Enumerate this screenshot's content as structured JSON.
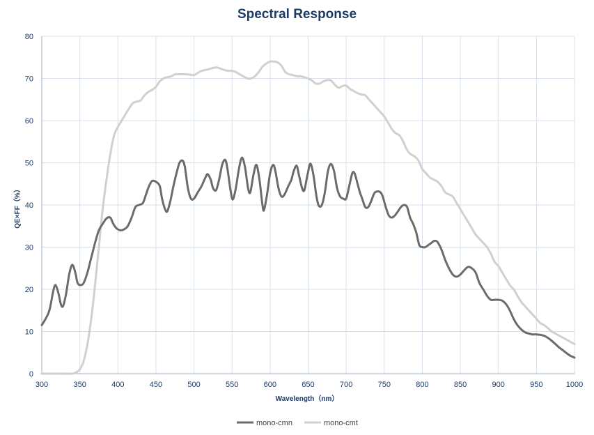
{
  "chart_data": {
    "type": "line",
    "title": "Spectral Response",
    "xlabel": "Wavelength（nm）",
    "ylabel": "QE×FF（%）",
    "xlim": [
      300,
      1000
    ],
    "ylim": [
      0,
      80
    ],
    "x_ticks": [
      "300",
      "350",
      "400",
      "450",
      "500",
      "550",
      "600",
      "650",
      "700",
      "750",
      "800",
      "850",
      "900",
      "950",
      "1000"
    ],
    "y_ticks": [
      "0",
      "10",
      "20",
      "30",
      "40",
      "50",
      "60",
      "70",
      "80"
    ],
    "grid": true,
    "legend_position": "bottom",
    "series": [
      {
        "name": "mono-cmn",
        "color": "#6b6b6b",
        "points": [
          [
            300,
            11.5
          ],
          [
            305,
            13
          ],
          [
            310,
            15
          ],
          [
            315,
            19.5
          ],
          [
            318,
            21
          ],
          [
            322,
            19
          ],
          [
            325,
            16.5
          ],
          [
            328,
            16
          ],
          [
            332,
            19
          ],
          [
            336,
            23.5
          ],
          [
            340,
            25.8
          ],
          [
            344,
            24
          ],
          [
            347,
            21.5
          ],
          [
            351,
            21
          ],
          [
            355,
            21.5
          ],
          [
            360,
            24
          ],
          [
            365,
            27.5
          ],
          [
            370,
            31
          ],
          [
            375,
            34
          ],
          [
            380,
            35.5
          ],
          [
            385,
            36.8
          ],
          [
            390,
            37
          ],
          [
            394,
            35.5
          ],
          [
            398,
            34.5
          ],
          [
            403,
            34
          ],
          [
            408,
            34.2
          ],
          [
            413,
            35
          ],
          [
            418,
            37
          ],
          [
            423,
            39.5
          ],
          [
            428,
            40
          ],
          [
            433,
            40.5
          ],
          [
            437,
            42.5
          ],
          [
            441,
            44.5
          ],
          [
            445,
            45.7
          ],
          [
            450,
            45.5
          ],
          [
            455,
            44.5
          ],
          [
            458,
            41.5
          ],
          [
            462,
            39
          ],
          [
            465,
            38.5
          ],
          [
            469,
            41
          ],
          [
            473,
            44.5
          ],
          [
            477,
            47.5
          ],
          [
            481,
            50
          ],
          [
            485,
            50.5
          ],
          [
            488,
            49
          ],
          [
            492,
            44
          ],
          [
            496,
            41.5
          ],
          [
            500,
            41.5
          ],
          [
            505,
            43
          ],
          [
            510,
            44.5
          ],
          [
            515,
            46.5
          ],
          [
            518,
            47.3
          ],
          [
            522,
            46
          ],
          [
            525,
            44
          ],
          [
            529,
            43.5
          ],
          [
            533,
            46
          ],
          [
            537,
            49.5
          ],
          [
            541,
            50.7
          ],
          [
            544,
            48.5
          ],
          [
            548,
            43.5
          ],
          [
            551,
            41.3
          ],
          [
            555,
            44
          ],
          [
            559,
            48.5
          ],
          [
            563,
            51.2
          ],
          [
            567,
            49
          ],
          [
            571,
            44
          ],
          [
            574,
            43
          ],
          [
            578,
            47
          ],
          [
            582,
            49.5
          ],
          [
            586,
            46
          ],
          [
            590,
            40
          ],
          [
            592,
            38.8
          ],
          [
            596,
            42.5
          ],
          [
            600,
            47.5
          ],
          [
            604,
            49.5
          ],
          [
            607,
            48
          ],
          [
            611,
            44
          ],
          [
            615,
            42
          ],
          [
            619,
            42.5
          ],
          [
            624,
            44.5
          ],
          [
            628,
            46
          ],
          [
            631,
            48
          ],
          [
            635,
            49.3
          ],
          [
            638,
            47
          ],
          [
            642,
            44
          ],
          [
            645,
            43.5
          ],
          [
            649,
            47
          ],
          [
            653,
            49.8
          ],
          [
            657,
            47
          ],
          [
            661,
            42
          ],
          [
            664,
            39.8
          ],
          [
            668,
            40
          ],
          [
            672,
            43
          ],
          [
            676,
            48
          ],
          [
            680,
            49.7
          ],
          [
            684,
            48
          ],
          [
            688,
            44
          ],
          [
            692,
            42
          ],
          [
            696,
            41.5
          ],
          [
            700,
            41.5
          ],
          [
            704,
            44.5
          ],
          [
            708,
            47.5
          ],
          [
            711,
            47.5
          ],
          [
            715,
            45
          ],
          [
            718,
            43
          ],
          [
            721,
            41.5
          ],
          [
            725,
            39.5
          ],
          [
            729,
            39.5
          ],
          [
            733,
            41
          ],
          [
            737,
            42.8
          ],
          [
            741,
            43.2
          ],
          [
            745,
            43
          ],
          [
            748,
            42
          ],
          [
            752,
            39.5
          ],
          [
            756,
            37.5
          ],
          [
            760,
            37
          ],
          [
            764,
            37.5
          ],
          [
            768,
            38.5
          ],
          [
            772,
            39.5
          ],
          [
            776,
            40
          ],
          [
            780,
            39.5
          ],
          [
            784,
            37
          ],
          [
            788,
            35.5
          ],
          [
            792,
            33.5
          ],
          [
            796,
            30.5
          ],
          [
            800,
            30
          ],
          [
            804,
            30
          ],
          [
            808,
            30.5
          ],
          [
            812,
            31
          ],
          [
            816,
            31.5
          ],
          [
            820,
            31.2
          ],
          [
            825,
            29.5
          ],
          [
            830,
            27
          ],
          [
            835,
            25
          ],
          [
            840,
            23.5
          ],
          [
            845,
            23
          ],
          [
            850,
            23.5
          ],
          [
            855,
            24.5
          ],
          [
            860,
            25.3
          ],
          [
            865,
            25
          ],
          [
            870,
            24
          ],
          [
            875,
            21.5
          ],
          [
            880,
            20
          ],
          [
            885,
            18.5
          ],
          [
            890,
            17.5
          ],
          [
            895,
            17.5
          ],
          [
            900,
            17.5
          ],
          [
            905,
            17.3
          ],
          [
            910,
            16.5
          ],
          [
            915,
            15
          ],
          [
            920,
            13
          ],
          [
            925,
            11.5
          ],
          [
            930,
            10.5
          ],
          [
            935,
            9.8
          ],
          [
            940,
            9.5
          ],
          [
            945,
            9.3
          ],
          [
            950,
            9.3
          ],
          [
            955,
            9.2
          ],
          [
            960,
            9
          ],
          [
            965,
            8.5
          ],
          [
            970,
            7.8
          ],
          [
            975,
            7
          ],
          [
            980,
            6.2
          ],
          [
            985,
            5.5
          ],
          [
            990,
            4.8
          ],
          [
            995,
            4.2
          ],
          [
            1000,
            3.8
          ]
        ]
      },
      {
        "name": "mono-cmt",
        "color": "#d0d0d0",
        "points": [
          [
            300,
            0
          ],
          [
            310,
            0
          ],
          [
            320,
            0
          ],
          [
            330,
            0
          ],
          [
            340,
            0
          ],
          [
            345,
            0.3
          ],
          [
            350,
            1
          ],
          [
            355,
            3
          ],
          [
            360,
            7
          ],
          [
            365,
            13
          ],
          [
            370,
            21
          ],
          [
            375,
            30
          ],
          [
            380,
            39
          ],
          [
            385,
            46
          ],
          [
            390,
            52
          ],
          [
            395,
            56.5
          ],
          [
            400,
            58.5
          ],
          [
            405,
            60
          ],
          [
            410,
            61.5
          ],
          [
            415,
            63
          ],
          [
            420,
            64.2
          ],
          [
            425,
            64.5
          ],
          [
            430,
            64.8
          ],
          [
            435,
            66
          ],
          [
            440,
            66.8
          ],
          [
            445,
            67.3
          ],
          [
            450,
            68
          ],
          [
            455,
            69.3
          ],
          [
            460,
            70
          ],
          [
            465,
            70.3
          ],
          [
            470,
            70.5
          ],
          [
            475,
            71
          ],
          [
            480,
            71
          ],
          [
            485,
            71
          ],
          [
            490,
            71
          ],
          [
            495,
            70.9
          ],
          [
            500,
            70.8
          ],
          [
            505,
            71.3
          ],
          [
            510,
            71.8
          ],
          [
            515,
            72
          ],
          [
            520,
            72.2
          ],
          [
            525,
            72.5
          ],
          [
            530,
            72.6
          ],
          [
            535,
            72.3
          ],
          [
            540,
            72
          ],
          [
            545,
            71.8
          ],
          [
            550,
            71.8
          ],
          [
            555,
            71.5
          ],
          [
            560,
            71
          ],
          [
            565,
            70.5
          ],
          [
            570,
            70
          ],
          [
            575,
            70
          ],
          [
            580,
            70.5
          ],
          [
            585,
            71.5
          ],
          [
            590,
            72.8
          ],
          [
            595,
            73.5
          ],
          [
            600,
            74
          ],
          [
            605,
            74
          ],
          [
            610,
            73.8
          ],
          [
            615,
            73
          ],
          [
            620,
            71.5
          ],
          [
            625,
            71
          ],
          [
            630,
            70.8
          ],
          [
            635,
            70.5
          ],
          [
            640,
            70.5
          ],
          [
            645,
            70.3
          ],
          [
            650,
            70
          ],
          [
            655,
            69.5
          ],
          [
            660,
            68.8
          ],
          [
            665,
            68.8
          ],
          [
            670,
            69.3
          ],
          [
            675,
            69.6
          ],
          [
            680,
            69.5
          ],
          [
            685,
            68.5
          ],
          [
            690,
            67.8
          ],
          [
            695,
            68.2
          ],
          [
            700,
            68.3
          ],
          [
            705,
            67.5
          ],
          [
            710,
            67
          ],
          [
            715,
            66.5
          ],
          [
            720,
            66.2
          ],
          [
            725,
            66
          ],
          [
            730,
            65
          ],
          [
            735,
            64
          ],
          [
            740,
            63
          ],
          [
            745,
            62
          ],
          [
            750,
            61
          ],
          [
            755,
            59.5
          ],
          [
            760,
            58
          ],
          [
            765,
            57
          ],
          [
            770,
            56.5
          ],
          [
            775,
            55
          ],
          [
            780,
            53
          ],
          [
            785,
            52
          ],
          [
            790,
            51.5
          ],
          [
            795,
            50.5
          ],
          [
            800,
            48.5
          ],
          [
            805,
            47.5
          ],
          [
            810,
            46.5
          ],
          [
            815,
            46
          ],
          [
            820,
            45.5
          ],
          [
            825,
            44.5
          ],
          [
            830,
            43
          ],
          [
            835,
            42.5
          ],
          [
            840,
            42
          ],
          [
            845,
            40.5
          ],
          [
            850,
            39
          ],
          [
            855,
            37.5
          ],
          [
            860,
            36
          ],
          [
            865,
            34.5
          ],
          [
            870,
            33
          ],
          [
            875,
            32
          ],
          [
            880,
            31
          ],
          [
            885,
            30
          ],
          [
            890,
            28.5
          ],
          [
            895,
            26.5
          ],
          [
            900,
            25.5
          ],
          [
            905,
            24
          ],
          [
            910,
            22.5
          ],
          [
            915,
            21
          ],
          [
            920,
            20
          ],
          [
            925,
            18.5
          ],
          [
            930,
            17
          ],
          [
            935,
            16
          ],
          [
            940,
            15
          ],
          [
            945,
            14
          ],
          [
            950,
            13
          ],
          [
            955,
            12
          ],
          [
            960,
            11.5
          ],
          [
            965,
            10.8
          ],
          [
            970,
            10
          ],
          [
            975,
            9.5
          ],
          [
            980,
            9
          ],
          [
            985,
            8.5
          ],
          [
            990,
            8
          ],
          [
            995,
            7.5
          ],
          [
            1000,
            7
          ]
        ]
      }
    ]
  }
}
